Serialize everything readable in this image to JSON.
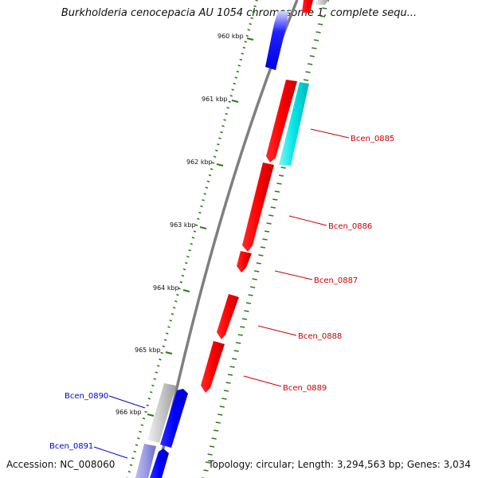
{
  "title": "Burkholderia cenocepacia AU 1054 chromosome 1, complete sequ...",
  "accession": "Accession: NC_008060",
  "topology": "Topology: circular; Length: 3,294,563 bp; Genes: 3,034",
  "colors": {
    "backbone": "#7f7f7f",
    "tick": "#2a7d16",
    "forward_gene": "#ff0000",
    "reverse_gene": "#0000ff",
    "cyan_gene": "#00e5e5",
    "gray_gene": "#bdbdbd",
    "lavender_gene": "#9a9ae6",
    "forward_label": "#cc0000",
    "reverse_label": "#0000cc"
  },
  "kbp_labels": [
    "960 kbp",
    "961 kbp",
    "962 kbp",
    "963 kbp",
    "964 kbp",
    "965 kbp",
    "966 kbp"
  ],
  "gene_labels": [
    {
      "text": "Bcen_0885",
      "strand": "forward"
    },
    {
      "text": "Bcen_0886",
      "strand": "forward"
    },
    {
      "text": "Bcen_0887",
      "strand": "forward"
    },
    {
      "text": "Bcen_0888",
      "strand": "forward"
    },
    {
      "text": "Bcen_0889",
      "strand": "forward"
    },
    {
      "text": "Bcen_0890",
      "strand": "reverse"
    },
    {
      "text": "Bcen_0891",
      "strand": "reverse"
    }
  ]
}
